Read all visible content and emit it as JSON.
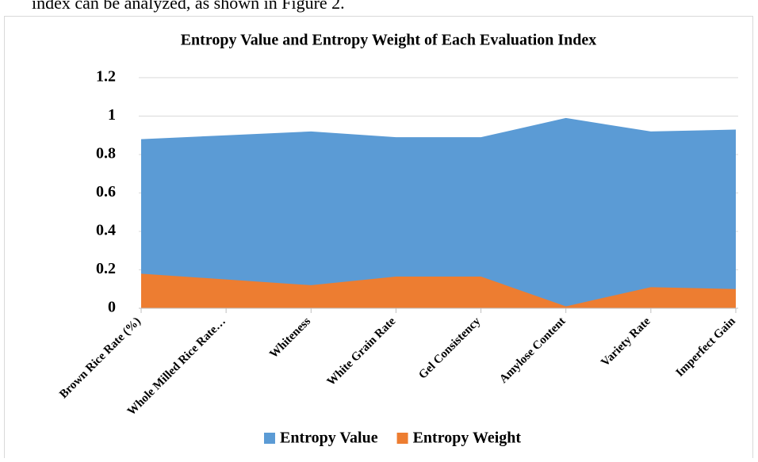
{
  "header_text": "index can be analyzed, as shown in Figure 2.",
  "chart_data": {
    "type": "area",
    "title": "Entropy Value and Entropy Weight of Each Evaluation Index",
    "categories": [
      "Brown Rice Rate (%)",
      "Whole Milled Rice Rate…",
      "Whiteness",
      "White Grain Rate",
      "Gel Consistency",
      "Amylose Content",
      "Variety Rate",
      "Imperfect Gain"
    ],
    "series": [
      {
        "name": "Entropy Value",
        "color": "#5b9bd5",
        "values": [
          0.88,
          0.9,
          0.92,
          0.89,
          0.89,
          0.99,
          0.92,
          0.93
        ]
      },
      {
        "name": "Entropy Weight",
        "color": "#ed7d31",
        "values": [
          0.18,
          0.15,
          0.12,
          0.165,
          0.165,
          0.01,
          0.11,
          0.1
        ]
      }
    ],
    "ylim": [
      0,
      1.2
    ],
    "yticks": [
      0,
      0.2,
      0.4,
      0.6,
      0.8,
      1,
      1.2
    ],
    "grid": true,
    "legend": "bottom"
  }
}
